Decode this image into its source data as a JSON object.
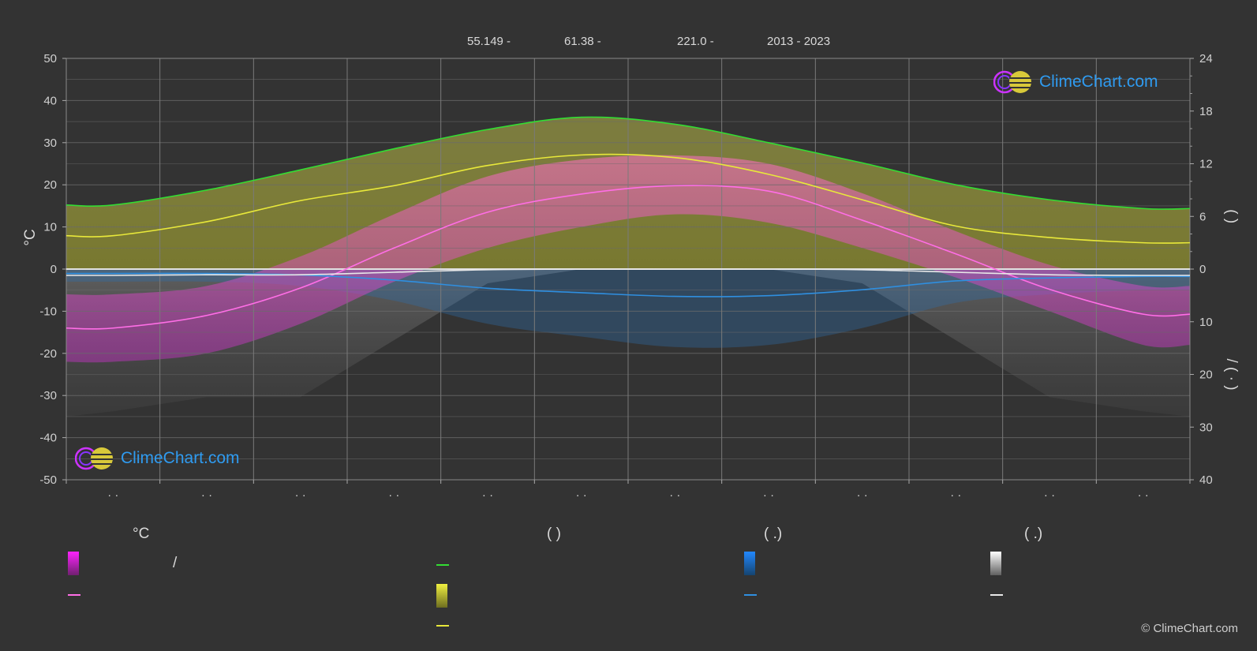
{
  "header": {
    "lat": "55.149 -",
    "lon": "61.38 -",
    "elevation": "221.0 -",
    "years": "2013 - 2023"
  },
  "chart_data": {
    "type": "line",
    "title": "",
    "xlabel": "",
    "ylabel_left": "°C",
    "ylim_left": [
      -50,
      50
    ],
    "yticks_left": [
      "50",
      "40",
      "30",
      "20",
      "10",
      "0",
      "-10",
      "-20",
      "-30",
      "-40",
      "-50"
    ],
    "ylim_right_top": [
      0,
      24
    ],
    "yticks_right_top": [
      "24",
      "18",
      "12",
      "6",
      "0"
    ],
    "ylim_right_bottom": [
      0,
      40
    ],
    "yticks_right_bottom": [
      "10",
      "20",
      "30",
      "40"
    ],
    "right_axis_label_top": "(    )",
    "right_axis_label_bottom": "/     (  ·  )",
    "month_labels": [
      "· ·",
      "· ·",
      "· ·",
      "· ·",
      "· ·",
      "· ·",
      "· ·",
      "· ·",
      "· ·",
      "· ·",
      "· ·",
      "· ·"
    ],
    "grid": true,
    "months_x": [
      0.5,
      1.5,
      2.5,
      3.5,
      4.5,
      5.5,
      6.5,
      7.5,
      8.5,
      9.5,
      10.5,
      11.5
    ],
    "series": [
      {
        "key": "daylight",
        "color": "#33dd33",
        "axis": "right_top",
        "values": [
          7.3,
          9.0,
          11.3,
          13.7,
          15.9,
          17.3,
          16.5,
          14.4,
          12.1,
          9.6,
          7.9,
          6.9
        ]
      },
      {
        "key": "sunshine",
        "color": "#e8e83a",
        "axis": "right_top",
        "values": [
          3.8,
          5.4,
          7.8,
          9.5,
          11.8,
          13.0,
          12.7,
          10.8,
          7.9,
          4.9,
          3.6,
          3.0
        ]
      },
      {
        "key": "mean_temp",
        "color": "#ff6ee6",
        "axis": "left",
        "values": [
          -14.0,
          -11.0,
          -4.5,
          5.0,
          13.5,
          17.8,
          19.8,
          18.5,
          11.6,
          3.6,
          -4.8,
          -10.7
        ]
      },
      {
        "key": "precip",
        "color": "#2f8fe0",
        "axis": "right_bottom",
        "values": [
          0.6,
          0.6,
          0.8,
          1.5,
          2.6,
          3.2,
          3.7,
          3.6,
          2.8,
          1.6,
          1.2,
          1.0
        ]
      },
      {
        "key": "snow",
        "color": "#e8e8e8",
        "axis": "right_bottom",
        "values": [
          1.0,
          0.9,
          0.9,
          0.5,
          0.1,
          0.0,
          0.0,
          0.0,
          0.1,
          0.5,
          0.9,
          1.0
        ]
      }
    ],
    "max_temp_band": [
      -6,
      -4,
      3,
      13,
      22,
      26,
      27,
      25,
      18,
      9,
      1,
      -4
    ],
    "min_temp_band": [
      -22,
      -20,
      -13,
      -3,
      5,
      10,
      13,
      11,
      5,
      -2,
      -10,
      -18
    ]
  },
  "legend": {
    "col1_head": "°C",
    "col1_item1": "/",
    "col2_head": "(         )",
    "col3_head": "(   .)",
    "col4_head": "(   .)"
  },
  "colors": {
    "temp_fill": "#e040e0",
    "sun_fill": "#c8c83a",
    "precip_fill": "#2f8fe0",
    "snow_fill": "#bdbdbd"
  },
  "logo": {
    "text": "ClimeChart.com"
  },
  "copyright": "© ClimeChart.com"
}
